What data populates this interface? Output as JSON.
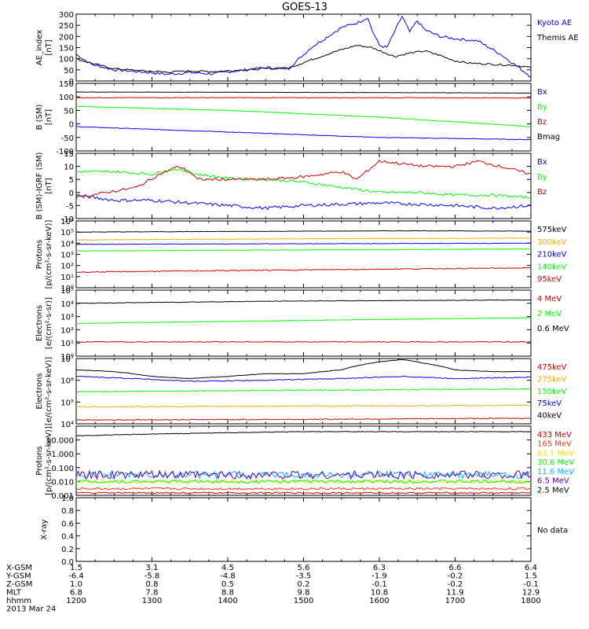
{
  "title": "GOES-13",
  "footer": {
    "rows": [
      {
        "label": "X-GSM",
        "values": [
          "1.5",
          "3.1",
          "4.5",
          "5.6",
          "6.3",
          "6.6",
          "6.4"
        ]
      },
      {
        "label": "Y-GSM",
        "values": [
          "-6.4",
          "-5.8",
          "-4.8",
          "-3.5",
          "-1.9",
          "-0.2",
          "1.5"
        ]
      },
      {
        "label": "Z-GSM",
        "values": [
          "1.0",
          "0.8",
          "0.5",
          "0.2",
          "-0.1",
          "-0.2",
          "-0.1"
        ]
      },
      {
        "label": "MLT",
        "values": [
          "6.8",
          "7.8",
          "8.8",
          "9.8",
          "10.8",
          "11.9",
          "12.9"
        ]
      },
      {
        "label": "hhmm",
        "values": [
          "1200",
          "1300",
          "1400",
          "1500",
          "1600",
          "1700",
          "1800"
        ]
      }
    ],
    "date": "2013 Mar 24"
  },
  "chart_data": [
    {
      "type": "line",
      "ylabel": "AE_index\n[nT]",
      "yscale": "linear",
      "ylim": [
        0,
        300
      ],
      "yticks": [
        "0",
        "50",
        "100",
        "150",
        "200",
        "250",
        "300"
      ],
      "ytick_values": [
        0,
        50,
        100,
        150,
        200,
        250,
        300
      ],
      "x_hours": [
        12,
        18
      ],
      "series": [
        {
          "name": "Kyoto AE",
          "color": "#0000ff",
          "noise": 6,
          "x": [
            12.0,
            12.2,
            12.5,
            12.9,
            13.2,
            13.5,
            13.8,
            14.1,
            14.5,
            14.8,
            15.1,
            15.3,
            15.5,
            15.7,
            15.85,
            15.9,
            16.0,
            16.1,
            16.3,
            16.4,
            16.5,
            16.6,
            16.8,
            17.0,
            17.3,
            17.6,
            17.9,
            18.0
          ],
          "y": [
            120,
            75,
            50,
            40,
            30,
            38,
            32,
            45,
            60,
            55,
            150,
            195,
            240,
            260,
            285,
            230,
            160,
            150,
            290,
            220,
            270,
            230,
            200,
            190,
            180,
            120,
            45,
            20
          ]
        },
        {
          "name": "Themis AE",
          "color": "#000000",
          "noise": 4,
          "x": [
            12.0,
            12.2,
            12.5,
            12.9,
            13.2,
            13.5,
            13.8,
            14.1,
            14.5,
            14.8,
            15.1,
            15.4,
            15.7,
            15.9,
            16.2,
            16.4,
            16.6,
            16.8,
            17.0,
            17.2,
            17.5,
            17.8,
            18.0
          ],
          "y": [
            100,
            80,
            55,
            45,
            40,
            45,
            42,
            48,
            55,
            58,
            95,
            130,
            160,
            150,
            110,
            125,
            135,
            115,
            90,
            80,
            75,
            70,
            60
          ]
        }
      ]
    },
    {
      "type": "line",
      "ylabel": "B (SM)\n[nT]",
      "yscale": "linear",
      "ylim": [
        -100,
        150
      ],
      "yticks": [
        "-100",
        "-50",
        "0",
        "50",
        "100",
        "150"
      ],
      "ytick_values": [
        -100,
        -50,
        0,
        50,
        100,
        150
      ],
      "series": [
        {
          "name": "Bx",
          "color": "#0000ff",
          "noise": 1,
          "x": [
            12,
            14,
            16,
            18
          ],
          "y": [
            -10,
            -30,
            -50,
            -58
          ]
        },
        {
          "name": "By",
          "color": "#00ff00",
          "noise": 1,
          "x": [
            12,
            14,
            16,
            18
          ],
          "y": [
            65,
            50,
            25,
            -10
          ]
        },
        {
          "name": "Bz",
          "color": "#cc0000",
          "noise": 1,
          "x": [
            12,
            14,
            16,
            18
          ],
          "y": [
            97,
            97,
            97,
            96
          ]
        },
        {
          "name": "Bmag",
          "color": "#000000",
          "noise": 0.5,
          "x": [
            12,
            14,
            16,
            18
          ],
          "y": [
            118,
            117,
            116,
            114
          ]
        }
      ]
    },
    {
      "type": "line",
      "ylabel": "B (SM)-IGRF (SM)\n[nT]",
      "yscale": "linear",
      "ylim": [
        -10,
        15
      ],
      "yticks": [
        "-10",
        "-5",
        "0",
        "5",
        "10",
        "15"
      ],
      "ytick_values": [
        -10,
        -5,
        0,
        5,
        10,
        15
      ],
      "series": [
        {
          "name": "Bx",
          "color": "#0000ff",
          "noise": 0.6,
          "x": [
            12.0,
            12.5,
            13.0,
            13.5,
            14.0,
            14.5,
            15.0,
            15.5,
            16.0,
            16.5,
            17.0,
            17.5,
            18.0
          ],
          "y": [
            -1,
            -3,
            -3,
            -4,
            -5,
            -6,
            -5,
            -4.5,
            -4,
            -4.5,
            -5,
            -6,
            -5
          ]
        },
        {
          "name": "By",
          "color": "#00ff00",
          "noise": 0.5,
          "x": [
            12.0,
            12.5,
            13.0,
            13.3,
            13.6,
            14.0,
            14.5,
            15.0,
            15.5,
            16.0,
            16.5,
            17.0,
            17.5,
            18.0
          ],
          "y": [
            8,
            8,
            7,
            9,
            7,
            5.5,
            5,
            4,
            2,
            0,
            0,
            -1,
            -1,
            -2
          ]
        },
        {
          "name": "Bz",
          "color": "#cc0000",
          "noise": 0.5,
          "x": [
            12.0,
            12.8,
            13.1,
            13.35,
            13.5,
            13.6,
            14.0,
            14.5,
            15.0,
            15.5,
            15.7,
            16.0,
            16.3,
            16.6,
            17.0,
            17.3,
            17.6,
            18.0
          ],
          "y": [
            -2,
            2,
            7,
            10,
            8,
            5,
            5,
            5,
            6,
            8,
            5,
            12,
            11,
            10,
            10,
            12,
            10,
            7
          ]
        }
      ]
    },
    {
      "type": "line",
      "ylabel": "Protons\n[p/(cm²-s-sr-keV)]",
      "yscale": "log",
      "ylim": [
        1,
        1000000
      ],
      "yticks": [
        "10⁰",
        "10¹",
        "10²",
        "10³",
        "10⁴",
        "10⁵",
        "10⁶"
      ],
      "ytick_values": [
        1,
        10,
        100,
        1000,
        10000,
        100000,
        1000000
      ],
      "series": [
        {
          "name": "575keV",
          "color": "#000000",
          "noise": 0.02,
          "x": [
            12,
            15,
            16.5,
            18
          ],
          "y": [
            100000,
            120000,
            130000,
            120000
          ]
        },
        {
          "name": "300keV",
          "color": "#ffaa00",
          "noise": 0.02,
          "x": [
            12,
            15,
            18
          ],
          "y": [
            20000,
            25000,
            28000
          ]
        },
        {
          "name": "210keV",
          "color": "#0000ff",
          "noise": 0.02,
          "x": [
            12,
            15,
            18
          ],
          "y": [
            8000,
            9000,
            10000
          ]
        },
        {
          "name": "140keV",
          "color": "#00ff00",
          "noise": 0.02,
          "x": [
            12,
            15,
            18
          ],
          "y": [
            2000,
            2500,
            3000
          ]
        },
        {
          "name": "95keV",
          "color": "#cc0000",
          "noise": 0.04,
          "x": [
            12,
            15,
            18
          ],
          "y": [
            25,
            40,
            60
          ]
        }
      ]
    },
    {
      "type": "line",
      "ylabel": "Electrons\n[e/(cm²-s-sr)]",
      "yscale": "log",
      "ylim": [
        1,
        100000
      ],
      "yticks": [
        "10⁰",
        "10¹",
        "10²",
        "10³",
        "10⁴",
        "10⁵"
      ],
      "ytick_values": [
        1,
        10,
        100,
        1000,
        10000,
        100000
      ],
      "series": [
        {
          "name": "4 MeV",
          "color": "#cc0000",
          "noise": 0.03,
          "x": [
            12,
            15,
            18
          ],
          "y": [
            12,
            12,
            12
          ]
        },
        {
          "name": "2 MeV",
          "color": "#00ff00",
          "noise": 0.02,
          "x": [
            12,
            15,
            18
          ],
          "y": [
            300,
            500,
            800
          ]
        },
        {
          "name": "0.6 MeV",
          "color": "#000000",
          "noise": 0.02,
          "x": [
            12,
            15,
            18
          ],
          "y": [
            10000,
            15000,
            18000
          ]
        }
      ]
    },
    {
      "type": "line",
      "ylabel": "Electrons\n[e/(cm²-s-sr-keV)]",
      "yscale": "log",
      "ylim": [
        10000,
        10000000
      ],
      "yticks": [
        "10⁴",
        "10⁵",
        "10⁶",
        "10⁷"
      ],
      "ytick_values": [
        10000,
        100000,
        1000000,
        10000000
      ],
      "series": [
        {
          "name": "475keV",
          "color": "#cc0000",
          "noise": 0.02,
          "x": [
            12,
            15,
            18
          ],
          "y": [
            15000,
            16000,
            18000
          ]
        },
        {
          "name": "275keV",
          "color": "#ffaa00",
          "noise": 0.02,
          "x": [
            12,
            15,
            18
          ],
          "y": [
            60000,
            65000,
            70000
          ]
        },
        {
          "name": "150keV",
          "color": "#00ff00",
          "noise": 0.02,
          "x": [
            12,
            15,
            18
          ],
          "y": [
            300000,
            350000,
            400000
          ]
        },
        {
          "name": "75keV",
          "color": "#0000ff",
          "noise": 0.02,
          "x": [
            12,
            13.5,
            14.5,
            15.5,
            16.3,
            17,
            18
          ],
          "y": [
            1500000,
            900000,
            1000000,
            1200000,
            1500000,
            1200000,
            1400000
          ]
        },
        {
          "name": "40keV",
          "color": "#000000",
          "noise": 0.01,
          "x": [
            12,
            12.5,
            13,
            13.5,
            14,
            14.5,
            15,
            15.5,
            16,
            16.3,
            16.6,
            17,
            17.5,
            18
          ],
          "y": [
            3000000,
            2500000,
            1500000,
            1200000,
            1500000,
            2000000,
            2000000,
            3000000,
            7000000,
            9000000,
            6000000,
            3000000,
            2500000,
            2500000
          ]
        }
      ]
    },
    {
      "type": "line",
      "ylabel": "Protons\n[p/(cm²-s-sr-keV)]",
      "yscale": "log",
      "ylim": [
        0.001,
        100
      ],
      "yticks": [
        "0.001",
        "0.010",
        "0.100",
        "1.000",
        "10.000"
      ],
      "ytick_values": [
        0.001,
        0.01,
        0.1,
        1,
        10
      ],
      "series": [
        {
          "name": "433 MeV",
          "color": "#cc0000",
          "noise": 0.05,
          "x": [
            12,
            18
          ],
          "y": [
            0.0015,
            0.0015
          ]
        },
        {
          "name": "165 MeV",
          "color": "#ff3300",
          "noise": 0.08,
          "x": [
            12,
            18
          ],
          "y": [
            0.003,
            0.003
          ]
        },
        {
          "name": "63.1 MeV",
          "color": "#ffdd00",
          "noise": 0.12,
          "x": [
            12,
            18
          ],
          "y": [
            0.01,
            0.01
          ]
        },
        {
          "name": "30.6 MeV",
          "color": "#00ff00",
          "noise": 0.12,
          "x": [
            12,
            18
          ],
          "y": [
            0.01,
            0.01
          ]
        },
        {
          "name": "11.6 MeV",
          "color": "#00bbff",
          "noise": 0.25,
          "x": [
            12,
            18
          ],
          "y": [
            0.03,
            0.03
          ]
        },
        {
          "name": "6.5 MeV",
          "color": "#6600aa",
          "noise": 0.3,
          "x": [
            12,
            18
          ],
          "y": [
            0.03,
            0.03
          ]
        },
        {
          "name": "2.5 MeV",
          "color": "#000000",
          "noise": 0.02,
          "x": [
            12,
            15,
            18
          ],
          "y": [
            20,
            40,
            40
          ]
        }
      ]
    },
    {
      "type": "line",
      "ylabel": "X-ray",
      "yscale": "linear",
      "ylim": [
        0,
        1
      ],
      "yticks": [
        "0.0",
        "0.2",
        "0.4",
        "0.6",
        "0.8",
        "1.0"
      ],
      "ytick_values": [
        0,
        0.2,
        0.4,
        0.6,
        0.8,
        1.0
      ],
      "series": [],
      "note": "No data"
    }
  ]
}
